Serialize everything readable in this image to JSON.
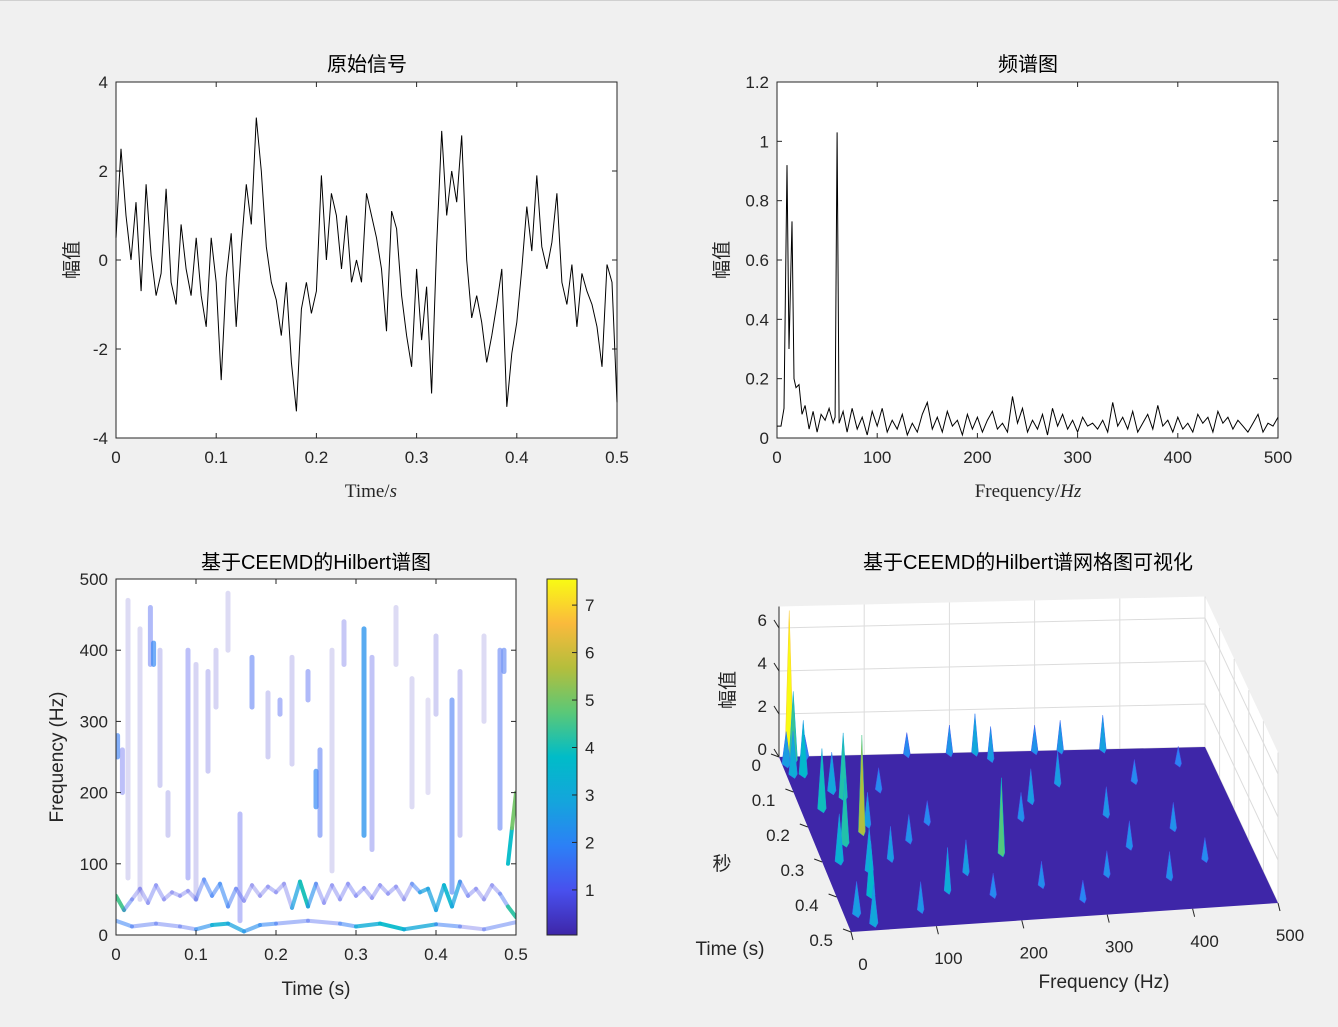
{
  "chart_data": [
    {
      "type": "line",
      "title": "原始信号",
      "xlabel": "Time/",
      "xlabel_unit": "s",
      "ylabel": "幅值",
      "xlim": [
        0,
        0.5
      ],
      "ylim": [
        -4,
        4
      ],
      "xticks": [
        "0",
        "0.1",
        "0.2",
        "0.3",
        "0.4",
        "0.5"
      ],
      "yticks": [
        "-4",
        "-2",
        "0",
        "2",
        "4"
      ],
      "line_color": "#000000",
      "t_step": 0.005,
      "values": [
        0.5,
        2.5,
        1.0,
        0.0,
        1.3,
        -0.7,
        1.7,
        0.1,
        -0.8,
        -0.3,
        1.6,
        -0.5,
        -1.0,
        0.8,
        -0.2,
        -0.8,
        0.5,
        -0.8,
        -1.5,
        0.5,
        -0.5,
        -2.7,
        -0.4,
        0.6,
        -1.5,
        0.3,
        1.7,
        0.8,
        3.2,
        2.0,
        0.3,
        -0.5,
        -0.9,
        -1.7,
        -0.5,
        -2.3,
        -3.4,
        -1.1,
        -0.5,
        -1.2,
        -0.7,
        1.9,
        0.0,
        1.5,
        1.0,
        -0.2,
        1.0,
        -0.5,
        0.0,
        -0.5,
        1.5,
        1.0,
        0.5,
        -0.2,
        -1.6,
        1.1,
        0.7,
        -0.8,
        -1.7,
        -2.4,
        -0.2,
        -1.8,
        -0.6,
        -3.0,
        0.3,
        2.9,
        1.0,
        2.0,
        1.3,
        2.8,
        0.0,
        -1.3,
        -0.8,
        -1.4,
        -2.3,
        -1.7,
        -1.0,
        -0.2,
        -3.3,
        -2.1,
        -1.4,
        -0.2,
        1.2,
        0.2,
        1.9,
        0.3,
        -0.2,
        0.4,
        1.5,
        -0.5,
        -1.0,
        -0.1,
        -1.5,
        -0.3,
        -0.7,
        -1.0,
        -1.5,
        -2.4,
        -0.1,
        -0.5,
        -3.2
      ]
    },
    {
      "type": "line",
      "title": "频谱图",
      "xlabel": "Frequency/",
      "xlabel_unit": "Hz",
      "ylabel": "幅值",
      "xlim": [
        0,
        500
      ],
      "ylim": [
        0,
        1.2
      ],
      "xticks": [
        "0",
        "100",
        "200",
        "300",
        "400",
        "500"
      ],
      "yticks": [
        "0",
        "0.2",
        "0.4",
        "0.6",
        "0.8",
        "1",
        "1.2"
      ],
      "line_color": "#000000",
      "points": [
        [
          0,
          0.04
        ],
        [
          4,
          0.04
        ],
        [
          7,
          0.1
        ],
        [
          10,
          0.92
        ],
        [
          12,
          0.3
        ],
        [
          15,
          0.73
        ],
        [
          17,
          0.2
        ],
        [
          19,
          0.17
        ],
        [
          22,
          0.18
        ],
        [
          25,
          0.08
        ],
        [
          28,
          0.11
        ],
        [
          32,
          0.03
        ],
        [
          36,
          0.09
        ],
        [
          40,
          0.02
        ],
        [
          44,
          0.08
        ],
        [
          48,
          0.06
        ],
        [
          52,
          0.1
        ],
        [
          56,
          0.05
        ],
        [
          58,
          0.07
        ],
        [
          60,
          1.03
        ],
        [
          62,
          0.05
        ],
        [
          66,
          0.09
        ],
        [
          70,
          0.02
        ],
        [
          75,
          0.1
        ],
        [
          80,
          0.03
        ],
        [
          85,
          0.07
        ],
        [
          90,
          0.01
        ],
        [
          95,
          0.09
        ],
        [
          100,
          0.04
        ],
        [
          105,
          0.1
        ],
        [
          110,
          0.02
        ],
        [
          115,
          0.06
        ],
        [
          120,
          0.03
        ],
        [
          125,
          0.08
        ],
        [
          130,
          0.01
        ],
        [
          135,
          0.05
        ],
        [
          140,
          0.02
        ],
        [
          145,
          0.08
        ],
        [
          150,
          0.12
        ],
        [
          155,
          0.03
        ],
        [
          160,
          0.07
        ],
        [
          165,
          0.02
        ],
        [
          170,
          0.09
        ],
        [
          175,
          0.04
        ],
        [
          180,
          0.06
        ],
        [
          185,
          0.01
        ],
        [
          190,
          0.08
        ],
        [
          195,
          0.03
        ],
        [
          200,
          0.07
        ],
        [
          205,
          0.02
        ],
        [
          210,
          0.06
        ],
        [
          215,
          0.09
        ],
        [
          220,
          0.03
        ],
        [
          225,
          0.05
        ],
        [
          230,
          0.02
        ],
        [
          235,
          0.14
        ],
        [
          240,
          0.05
        ],
        [
          245,
          0.1
        ],
        [
          250,
          0.02
        ],
        [
          255,
          0.06
        ],
        [
          260,
          0.03
        ],
        [
          265,
          0.08
        ],
        [
          270,
          0.01
        ],
        [
          275,
          0.1
        ],
        [
          280,
          0.04
        ],
        [
          285,
          0.08
        ],
        [
          290,
          0.03
        ],
        [
          295,
          0.06
        ],
        [
          300,
          0.02
        ],
        [
          305,
          0.07
        ],
        [
          310,
          0.04
        ],
        [
          315,
          0.05
        ],
        [
          320,
          0.03
        ],
        [
          325,
          0.06
        ],
        [
          330,
          0.02
        ],
        [
          335,
          0.12
        ],
        [
          340,
          0.04
        ],
        [
          345,
          0.07
        ],
        [
          350,
          0.03
        ],
        [
          355,
          0.09
        ],
        [
          360,
          0.02
        ],
        [
          365,
          0.05
        ],
        [
          370,
          0.08
        ],
        [
          375,
          0.03
        ],
        [
          380,
          0.11
        ],
        [
          385,
          0.04
        ],
        [
          390,
          0.06
        ],
        [
          395,
          0.02
        ],
        [
          400,
          0.07
        ],
        [
          405,
          0.03
        ],
        [
          410,
          0.05
        ],
        [
          415,
          0.02
        ],
        [
          420,
          0.08
        ],
        [
          425,
          0.05
        ],
        [
          430,
          0.07
        ],
        [
          435,
          0.02
        ],
        [
          440,
          0.09
        ],
        [
          445,
          0.05
        ],
        [
          450,
          0.07
        ],
        [
          455,
          0.03
        ],
        [
          460,
          0.06
        ],
        [
          465,
          0.04
        ],
        [
          470,
          0.02
        ],
        [
          475,
          0.05
        ],
        [
          480,
          0.08
        ],
        [
          485,
          0.02
        ],
        [
          490,
          0.05
        ],
        [
          495,
          0.04
        ],
        [
          500,
          0.07
        ]
      ]
    },
    {
      "type": "heatmap",
      "title": "基于CEEMD的Hilbert谱图",
      "xlabel": "Time (s)",
      "ylabel": "Frequency (Hz)",
      "xlim": [
        0,
        0.5
      ],
      "ylim": [
        0,
        500
      ],
      "xticks": [
        "0",
        "0.1",
        "0.2",
        "0.3",
        "0.4",
        "0.5"
      ],
      "yticks": [
        "0",
        "100",
        "200",
        "300",
        "400",
        "500"
      ],
      "colormap": "parula",
      "colorbar": {
        "range": [
          0.05,
          7.55
        ],
        "ticks": [
          "1",
          "2",
          "3",
          "4",
          "5",
          "6",
          "7"
        ]
      },
      "ridges": [
        {
          "t": [
            0,
            0.02,
            0.05,
            0.08,
            0.1,
            0.12,
            0.14,
            0.16,
            0.18,
            0.2,
            0.24,
            0.28,
            0.3,
            0.33,
            0.36,
            0.4,
            0.43,
            0.46,
            0.5
          ],
          "f": [
            20,
            12,
            16,
            12,
            8,
            14,
            16,
            5,
            14,
            16,
            20,
            16,
            12,
            16,
            8,
            15,
            12,
            8,
            18
          ],
          "amp": [
            2.2,
            1.5,
            1.2,
            1.2,
            1.3,
            3.2,
            3.5,
            2,
            2.5,
            1.5,
            1.2,
            1.2,
            2.5,
            3.8,
            3.5,
            2.5,
            1,
            0.8,
            2
          ]
        },
        {
          "t": [
            0,
            0.01,
            0.02,
            0.03,
            0.04,
            0.05,
            0.06,
            0.07,
            0.08,
            0.09,
            0.1,
            0.11,
            0.12,
            0.13,
            0.14,
            0.15,
            0.16,
            0.17,
            0.18,
            0.19,
            0.2,
            0.21,
            0.22,
            0.23,
            0.24,
            0.25,
            0.26,
            0.27,
            0.28,
            0.29,
            0.3,
            0.31,
            0.32,
            0.33,
            0.34,
            0.35,
            0.36,
            0.37,
            0.38,
            0.39,
            0.4,
            0.41,
            0.42,
            0.43,
            0.44,
            0.45,
            0.46,
            0.47,
            0.48,
            0.49,
            0.5
          ],
          "f": [
            55,
            35,
            50,
            65,
            45,
            70,
            50,
            60,
            55,
            62,
            50,
            78,
            55,
            72,
            40,
            65,
            48,
            70,
            55,
            68,
            60,
            72,
            38,
            75,
            40,
            72,
            45,
            70,
            50,
            72,
            55,
            66,
            52,
            70,
            58,
            68,
            50,
            72,
            60,
            65,
            35,
            70,
            40,
            75,
            55,
            65,
            50,
            70,
            58,
            40,
            25
          ],
          "amp": [
            7,
            2,
            1,
            0.8,
            1,
            1.2,
            0.8,
            1,
            0.9,
            1,
            0.8,
            2,
            1.5,
            2,
            2,
            1.2,
            1,
            0.8,
            0.8,
            1,
            1,
            0.8,
            1,
            4.5,
            3.5,
            1,
            1,
            0.9,
            1,
            1,
            1.1,
            0.9,
            1,
            0.9,
            1,
            1,
            0.8,
            1,
            2.5,
            3,
            2.5,
            3,
            4,
            1.5,
            1,
            1,
            0.8,
            1,
            0.9,
            2,
            6.5
          ]
        },
        {
          "t": [
            0.49,
            0.495,
            0.5
          ],
          "f": [
            100,
            150,
            200
          ],
          "amp": [
            3,
            4.5,
            5.5
          ]
        }
      ],
      "streaks": [
        [
          0.002,
          250,
          280,
          1.8
        ],
        [
          0.008,
          200,
          260,
          1.0
        ],
        [
          0.015,
          80,
          470,
          0.4
        ],
        [
          0.03,
          50,
          430,
          0.4
        ],
        [
          0.043,
          380,
          460,
          1.2
        ],
        [
          0.047,
          380,
          410,
          2.0
        ],
        [
          0.055,
          210,
          400,
          0.6
        ],
        [
          0.065,
          140,
          200,
          0.6
        ],
        [
          0.09,
          80,
          400,
          1.0
        ],
        [
          0.1,
          50,
          380,
          0.5
        ],
        [
          0.115,
          230,
          370,
          0.7
        ],
        [
          0.125,
          320,
          400,
          0.5
        ],
        [
          0.14,
          400,
          480,
          0.4
        ],
        [
          0.155,
          20,
          170,
          1.0
        ],
        [
          0.17,
          320,
          390,
          1.4
        ],
        [
          0.19,
          250,
          340,
          0.6
        ],
        [
          0.205,
          310,
          330,
          1.2
        ],
        [
          0.22,
          240,
          390,
          0.5
        ],
        [
          0.24,
          330,
          370,
          1.2
        ],
        [
          0.25,
          180,
          230,
          2.0
        ],
        [
          0.255,
          140,
          260,
          1.4
        ],
        [
          0.27,
          90,
          400,
          0.4
        ],
        [
          0.285,
          380,
          440,
          0.8
        ],
        [
          0.31,
          140,
          430,
          2.3
        ],
        [
          0.32,
          120,
          390,
          0.9
        ],
        [
          0.35,
          380,
          460,
          0.4
        ],
        [
          0.37,
          180,
          360,
          0.4
        ],
        [
          0.39,
          200,
          330,
          0.3
        ],
        [
          0.4,
          310,
          420,
          0.6
        ],
        [
          0.42,
          60,
          330,
          1.6
        ],
        [
          0.43,
          140,
          370,
          0.7
        ],
        [
          0.46,
          300,
          420,
          0.4
        ],
        [
          0.48,
          150,
          400,
          1.4
        ],
        [
          0.485,
          370,
          400,
          1.5
        ]
      ]
    },
    {
      "type": "surface",
      "title": "基于CEEMD的Hilbert谱网格图可视化",
      "xlabel": "Frequency (Hz)",
      "ylabel": "Time (s)",
      "ylabel2": "秒",
      "zlabel": "幅值",
      "xlim": [
        0,
        500
      ],
      "ylim": [
        0,
        0.5
      ],
      "zlim": [
        0,
        7
      ],
      "xticks": [
        "0",
        "100",
        "200",
        "300",
        "400",
        "500"
      ],
      "yticks": [
        "0",
        "0.1",
        "0.2",
        "0.3",
        "0.4",
        "0.5"
      ],
      "zticks": [
        "0",
        "2",
        "4",
        "6"
      ],
      "colormap": "parula",
      "floor_color": "#3e26a8",
      "peaks": [
        [
          12,
          0.0,
          6.8
        ],
        [
          5,
          0.02,
          1.5
        ],
        [
          8,
          0.05,
          2.0
        ],
        [
          15,
          0.01,
          3.2
        ],
        [
          20,
          0.05,
          2.5
        ],
        [
          30,
          0.0,
          1.0
        ],
        [
          45,
          0.1,
          1.8
        ],
        [
          25,
          0.15,
          2.8
        ],
        [
          55,
          0.12,
          3.0
        ],
        [
          70,
          0.2,
          1.5
        ],
        [
          60,
          0.22,
          4.5
        ],
        [
          35,
          0.25,
          3.0
        ],
        [
          20,
          0.3,
          2.2
        ],
        [
          50,
          0.33,
          2.0
        ],
        [
          40,
          0.4,
          2.5
        ],
        [
          15,
          0.45,
          1.5
        ],
        [
          30,
          0.48,
          1.8
        ],
        [
          80,
          0.3,
          1.5
        ],
        [
          100,
          0.1,
          1.0
        ],
        [
          110,
          0.25,
          1.2
        ],
        [
          130,
          0.4,
          2.0
        ],
        [
          150,
          0.0,
          1.0
        ],
        [
          160,
          0.35,
          1.5
        ],
        [
          200,
          0.0,
          1.3
        ],
        [
          210,
          0.3,
          3.5
        ],
        [
          230,
          0.0,
          1.8
        ],
        [
          245,
          0.02,
          1.5
        ],
        [
          250,
          0.2,
          1.2
        ],
        [
          270,
          0.15,
          1.5
        ],
        [
          300,
          0.0,
          1.2
        ],
        [
          310,
          0.1,
          1.5
        ],
        [
          330,
          0.0,
          1.4
        ],
        [
          350,
          0.2,
          1.3
        ],
        [
          360,
          0.3,
          1.2
        ],
        [
          380,
          0.0,
          1.6
        ],
        [
          390,
          0.4,
          1.2
        ],
        [
          400,
          0.1,
          1.0
        ],
        [
          420,
          0.25,
          1.2
        ],
        [
          440,
          0.35,
          1.0
        ],
        [
          460,
          0.05,
          0.8
        ],
        [
          180,
          0.42,
          1.0
        ],
        [
          280,
          0.45,
          0.9
        ],
        [
          320,
          0.38,
          1.1
        ],
        [
          90,
          0.45,
          1.3
        ],
        [
          140,
          0.2,
          1.0
        ],
        [
          240,
          0.4,
          1.1
        ]
      ]
    }
  ]
}
